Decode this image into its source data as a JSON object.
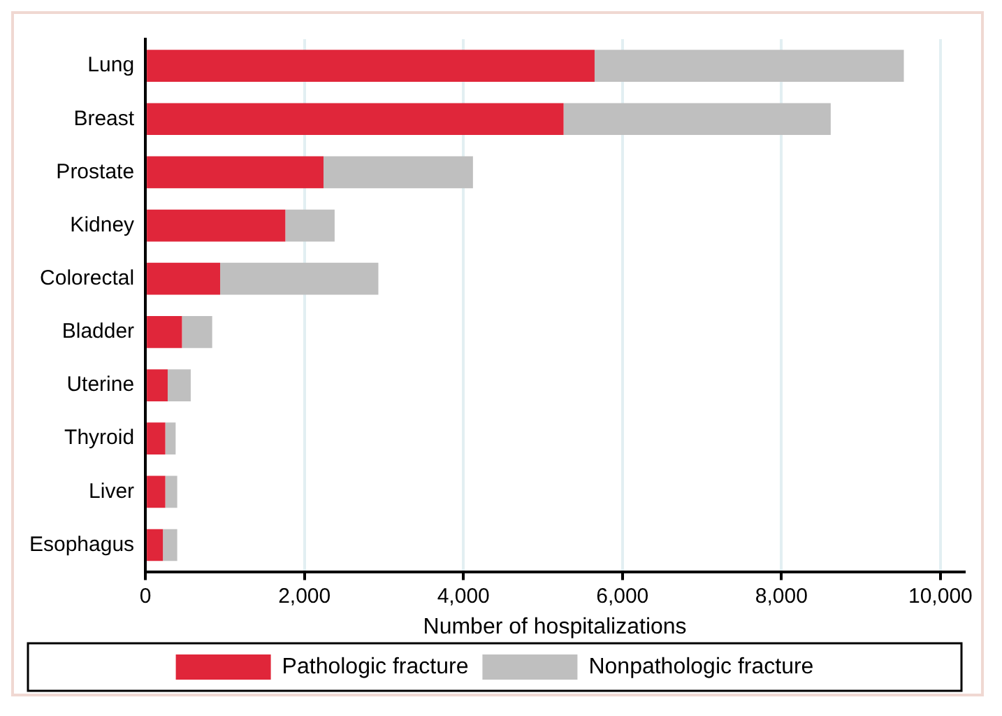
{
  "chart_data": {
    "type": "bar",
    "orientation": "horizontal",
    "stacked": true,
    "xlabel": "Number of hospitalizations",
    "categories": [
      "Lung",
      "Breast",
      "Prostate",
      "Kidney",
      "Colorectal",
      "Bladder",
      "Uterine",
      "Thyroid",
      "Liver",
      "Esophagus"
    ],
    "series": [
      {
        "name": "Pathologic fracture",
        "color": "#e0263a",
        "values": [
          5650,
          5260,
          2240,
          1760,
          940,
          460,
          280,
          250,
          250,
          220
        ]
      },
      {
        "name": "Nonpathologic fracture",
        "color": "#bfbfbf",
        "values": [
          3890,
          3360,
          1880,
          620,
          1990,
          380,
          290,
          130,
          150,
          180
        ]
      }
    ],
    "xlim": [
      0,
      10300
    ],
    "xticks": [
      0,
      {
        "value": 2000,
        "label": "2,000"
      },
      {
        "value": 4000,
        "label": "4,000"
      },
      {
        "value": 6000,
        "label": "6,000"
      },
      {
        "value": 8000,
        "label": "8,000"
      },
      {
        "value": 10000,
        "label": "10,000"
      }
    ],
    "grid": "x",
    "legend": "bottom"
  }
}
